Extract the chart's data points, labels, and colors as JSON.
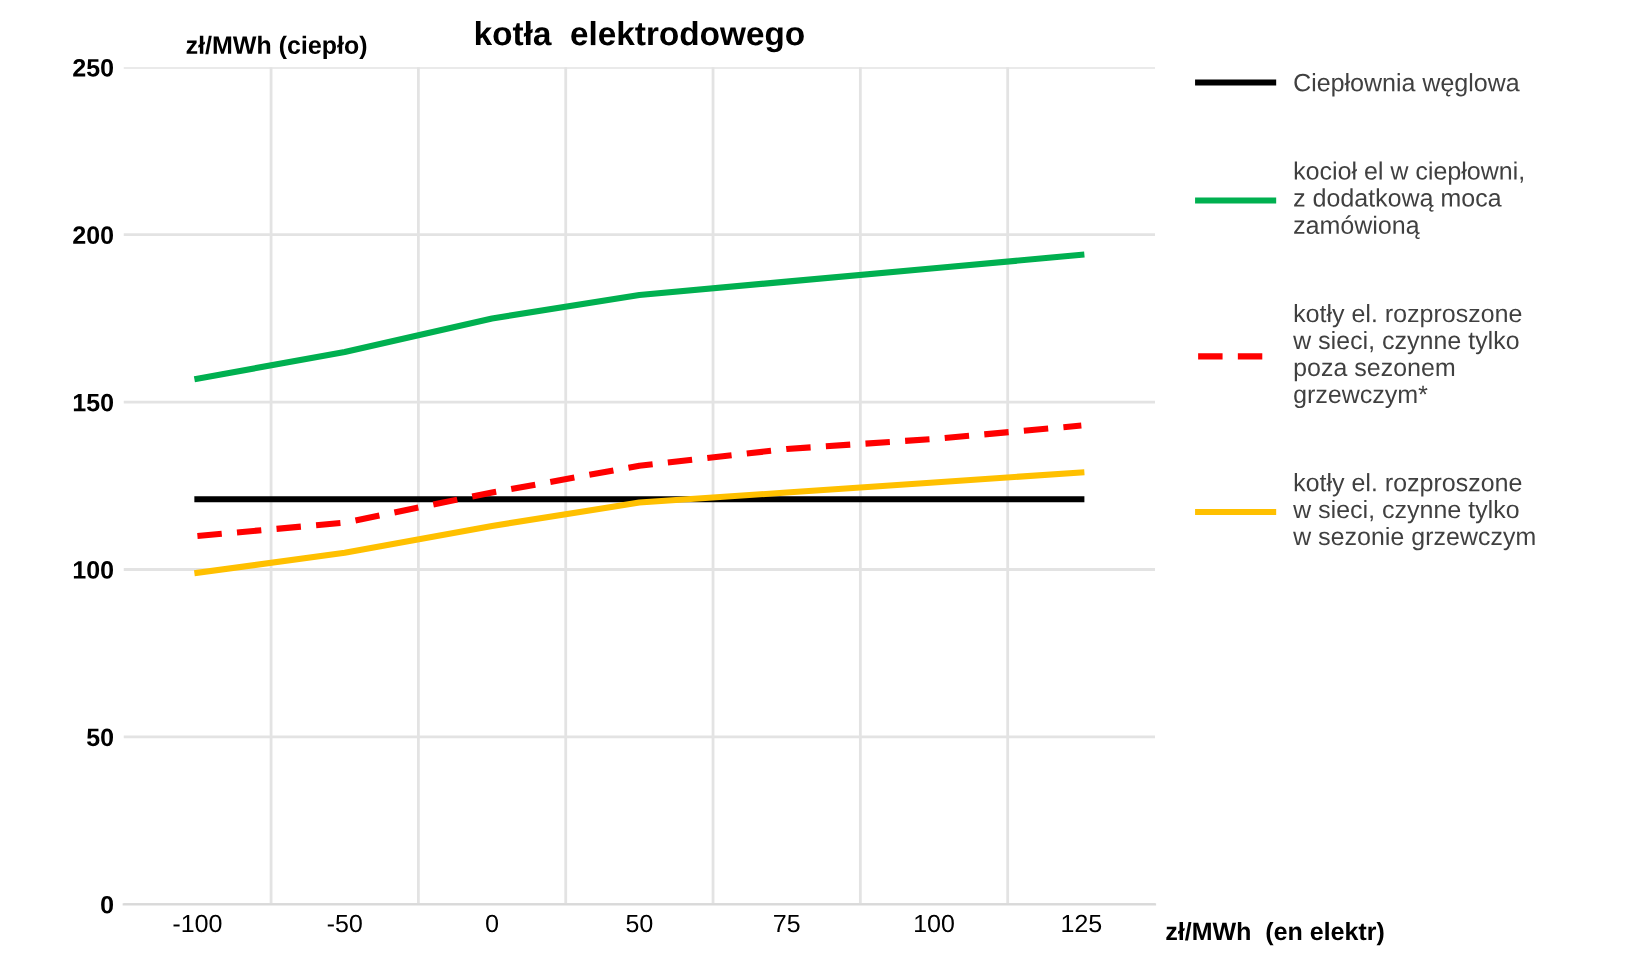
{
  "chart_data": {
    "type": "line",
    "title": "kotła  elektrodowego",
    "ylabel": "zł/MWh (ciepło)",
    "xlabel": "zł/MWh  (en elektr)",
    "categories": [
      "-100",
      "-50",
      "0",
      "50",
      "75",
      "100",
      "125"
    ],
    "ylim": [
      0,
      250
    ],
    "yticks": [
      0,
      50,
      100,
      150,
      200,
      250
    ],
    "grid": true,
    "legend": "right",
    "marker": "none",
    "series": [
      {
        "name": "Ciepłownia węglowa",
        "color": "#000000",
        "values": [
          121,
          121,
          121,
          121,
          121,
          121,
          121
        ]
      },
      {
        "name": "kocioł el w ciepłowni,\nz dodatkową moca\nzamówioną",
        "color": "#00b050",
        "values": [
          157,
          165,
          175,
          182,
          186,
          190,
          194
        ]
      },
      {
        "name": "kotły el. rozproszone\nw sieci, czynne tylko\npoza sezonem\ngrzewczym*",
        "color": "#ff0000",
        "line_style": "dashed",
        "values": [
          110,
          114,
          123,
          131,
          136,
          139,
          143
        ]
      },
      {
        "name": "kotły el. rozproszone\nw sieci, czynne tylko\nw sezonie grzewczym",
        "color": "#ffc000",
        "values": [
          99,
          105,
          113,
          120,
          123,
          126,
          129
        ]
      }
    ]
  }
}
